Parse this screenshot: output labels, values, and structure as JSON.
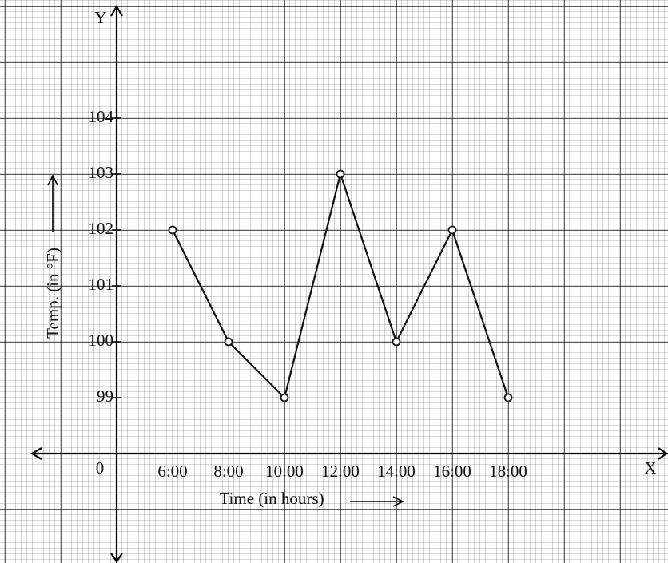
{
  "chart_data": {
    "type": "line",
    "origin_label": "0",
    "x_axis_letter": "X",
    "y_axis_letter": "Y",
    "x_label": "Time (in hours)",
    "y_label": "Temp. (in °F)",
    "categories": [
      "6:00",
      "8:00",
      "10:00",
      "12:00",
      "14:00",
      "16:00",
      "18:00"
    ],
    "values": [
      102,
      100,
      99,
      103,
      100,
      102,
      99
    ],
    "color": "#111111",
    "ylim": [
      99,
      104
    ],
    "yticks": [
      99,
      100,
      101,
      102,
      103,
      104
    ],
    "grid": true
  }
}
